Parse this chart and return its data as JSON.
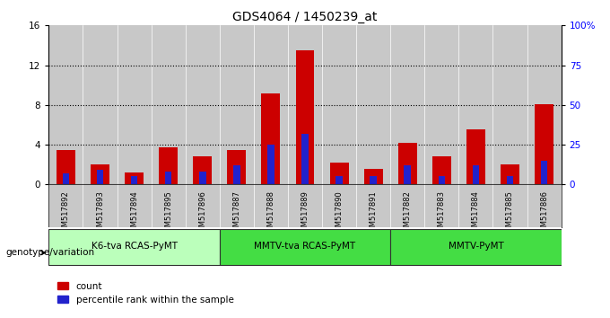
{
  "title": "GDS4064 / 1450239_at",
  "samples": [
    "GSM517892",
    "GSM517893",
    "GSM517894",
    "GSM517895",
    "GSM517896",
    "GSM517887",
    "GSM517888",
    "GSM517889",
    "GSM517890",
    "GSM517891",
    "GSM517882",
    "GSM517883",
    "GSM517884",
    "GSM517885",
    "GSM517886"
  ],
  "counts": [
    3.5,
    2.0,
    1.2,
    3.7,
    2.8,
    3.5,
    9.2,
    13.5,
    2.2,
    1.6,
    4.2,
    2.8,
    5.5,
    2.0,
    8.1
  ],
  "percentiles": [
    7.0,
    9.0,
    5.0,
    8.0,
    8.0,
    12.0,
    25.0,
    32.0,
    5.0,
    5.0,
    12.0,
    5.0,
    12.0,
    5.0,
    15.0
  ],
  "ylim_left": [
    0,
    16
  ],
  "ylim_right": [
    0,
    100
  ],
  "yticks_left": [
    0,
    4,
    8,
    12,
    16
  ],
  "yticks_right": [
    0,
    25,
    50,
    75,
    100
  ],
  "ytick_labels_right": [
    "0",
    "25",
    "50",
    "75",
    "100%"
  ],
  "bar_color": "#cc0000",
  "percentile_color": "#2222cc",
  "bg_color_samples": "#c8c8c8",
  "groups": [
    {
      "label": "K6-tva RCAS-PyMT",
      "start": 0,
      "end": 5,
      "color": "#bbffbb"
    },
    {
      "label": "MMTV-tva RCAS-PyMT",
      "start": 5,
      "end": 10,
      "color": "#44dd44"
    },
    {
      "label": "MMTV-PyMT",
      "start": 10,
      "end": 15,
      "color": "#44dd44"
    }
  ],
  "xlabel_group": "genotype/variation",
  "legend_count_label": "count",
  "legend_pct_label": "percentile rank within the sample",
  "bar_width": 0.55,
  "pct_bar_width": 0.2
}
